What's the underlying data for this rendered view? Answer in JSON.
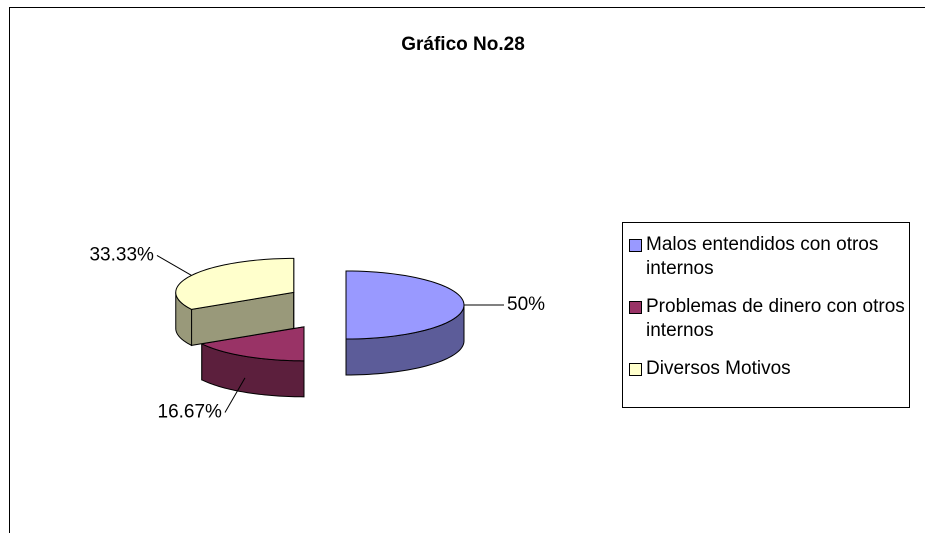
{
  "chart_data": {
    "type": "pie",
    "title": "Gráfico No.28",
    "categories": [
      "Malos entendidos con otros internos",
      "Problemas de dinero con otros internos",
      "Diversos Motivos"
    ],
    "values": [
      50,
      16.67,
      33.33
    ],
    "value_labels": [
      "50%",
      "16.67%",
      "33.33%"
    ],
    "colors": [
      "#9999ff",
      "#993366",
      "#ffffcc"
    ]
  }
}
